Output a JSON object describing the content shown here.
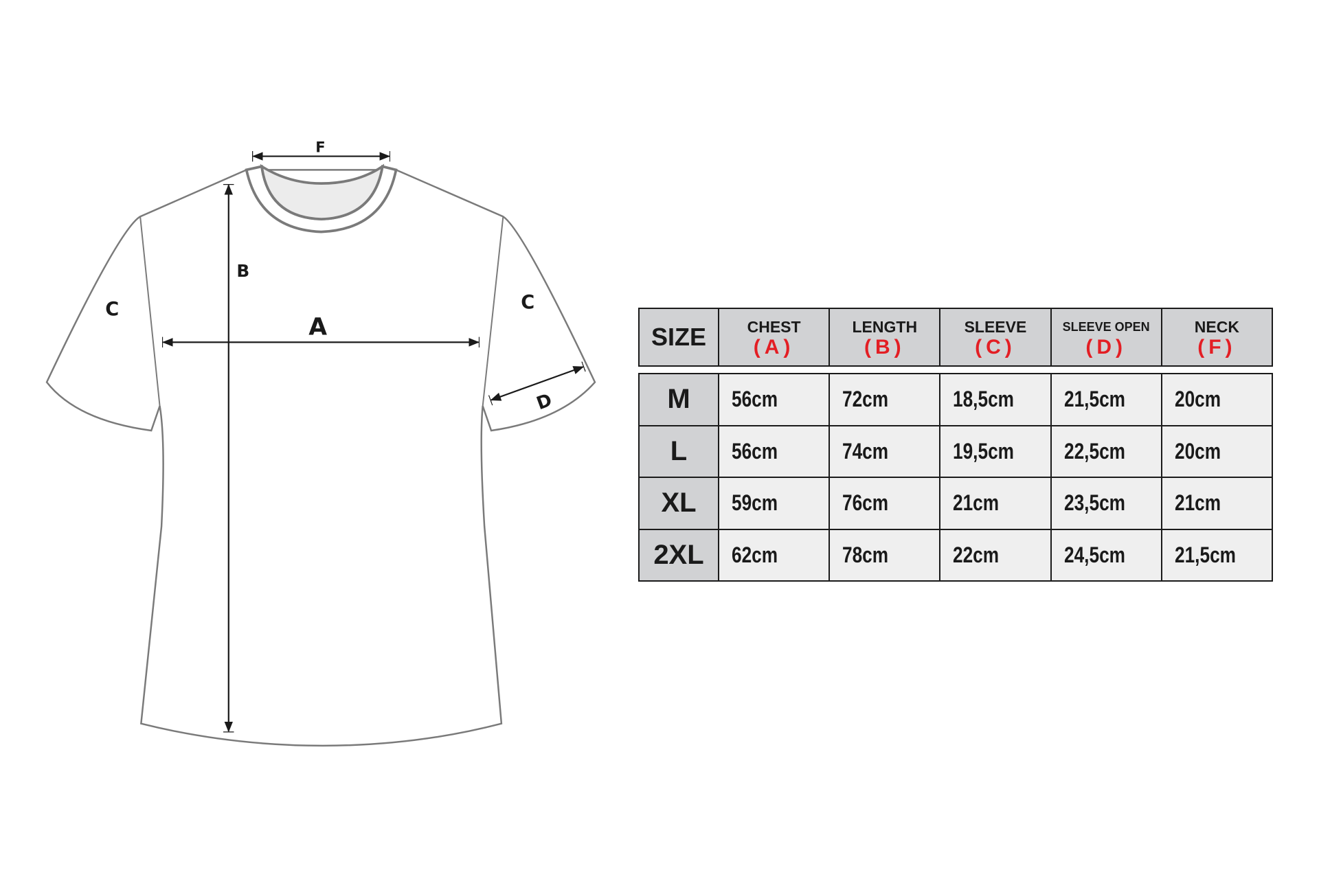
{
  "diagram": {
    "labels": {
      "chest": "A",
      "length": "B",
      "sleeve_left": "C",
      "sleeve_right": "C",
      "sleeve_open": "D",
      "neck": "F"
    },
    "accent_color": "#e31e24"
  },
  "table": {
    "headers": [
      {
        "label": "SIZE",
        "code": ""
      },
      {
        "label": "CHEST",
        "code": "(A)"
      },
      {
        "label": "LENGTH",
        "code": "(B)"
      },
      {
        "label": "SLEEVE",
        "code": "(C)"
      },
      {
        "label": "SLEEVE OPEN",
        "code": "(D)"
      },
      {
        "label": "NECK",
        "code": "(F)"
      }
    ],
    "rows": [
      {
        "size": "M",
        "values": [
          "56cm",
          "72cm",
          "18,5cm",
          "21,5cm",
          "20cm"
        ]
      },
      {
        "size": "L",
        "values": [
          "56cm",
          "74cm",
          "19,5cm",
          "22,5cm",
          "20cm"
        ]
      },
      {
        "size": "XL",
        "values": [
          "59cm",
          "76cm",
          "21cm",
          "23,5cm",
          "21cm"
        ]
      },
      {
        "size": "2XL",
        "values": [
          "62cm",
          "78cm",
          "22cm",
          "24,5cm",
          "21,5cm"
        ]
      }
    ]
  }
}
